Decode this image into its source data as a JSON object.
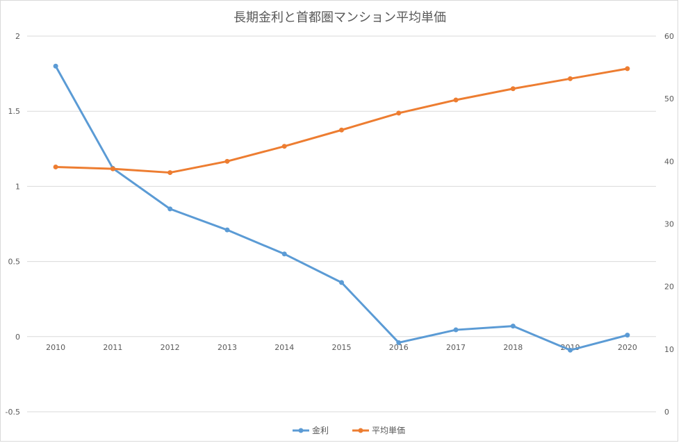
{
  "chart_data": {
    "type": "line",
    "title": "長期金利と首都圏マンション平均単価",
    "categories": [
      "2010",
      "2011",
      "2012",
      "2013",
      "2014",
      "2015",
      "2016",
      "2017",
      "2018",
      "2019",
      "2020"
    ],
    "series": [
      {
        "name": "金利",
        "axis": "left",
        "color": "#5b9bd5",
        "values": [
          1.8,
          1.12,
          0.85,
          0.71,
          0.55,
          0.36,
          -0.04,
          0.045,
          0.07,
          -0.09,
          0.01
        ]
      },
      {
        "name": "平均単価",
        "axis": "right",
        "color": "#ed7d31",
        "values": [
          39.1,
          38.8,
          38.2,
          40.0,
          42.4,
          45.0,
          47.7,
          49.8,
          51.6,
          53.2,
          54.8
        ]
      }
    ],
    "y_left": {
      "min": -0.5,
      "max": 2,
      "ticks": [
        "-0.5",
        "0",
        "0.5",
        "1",
        "1.5",
        "2"
      ]
    },
    "y_right": {
      "min": 0,
      "max": 60,
      "ticks": [
        "0",
        "10",
        "20",
        "30",
        "40",
        "50",
        "60"
      ]
    },
    "grid": true,
    "legend": "bottom-center"
  }
}
